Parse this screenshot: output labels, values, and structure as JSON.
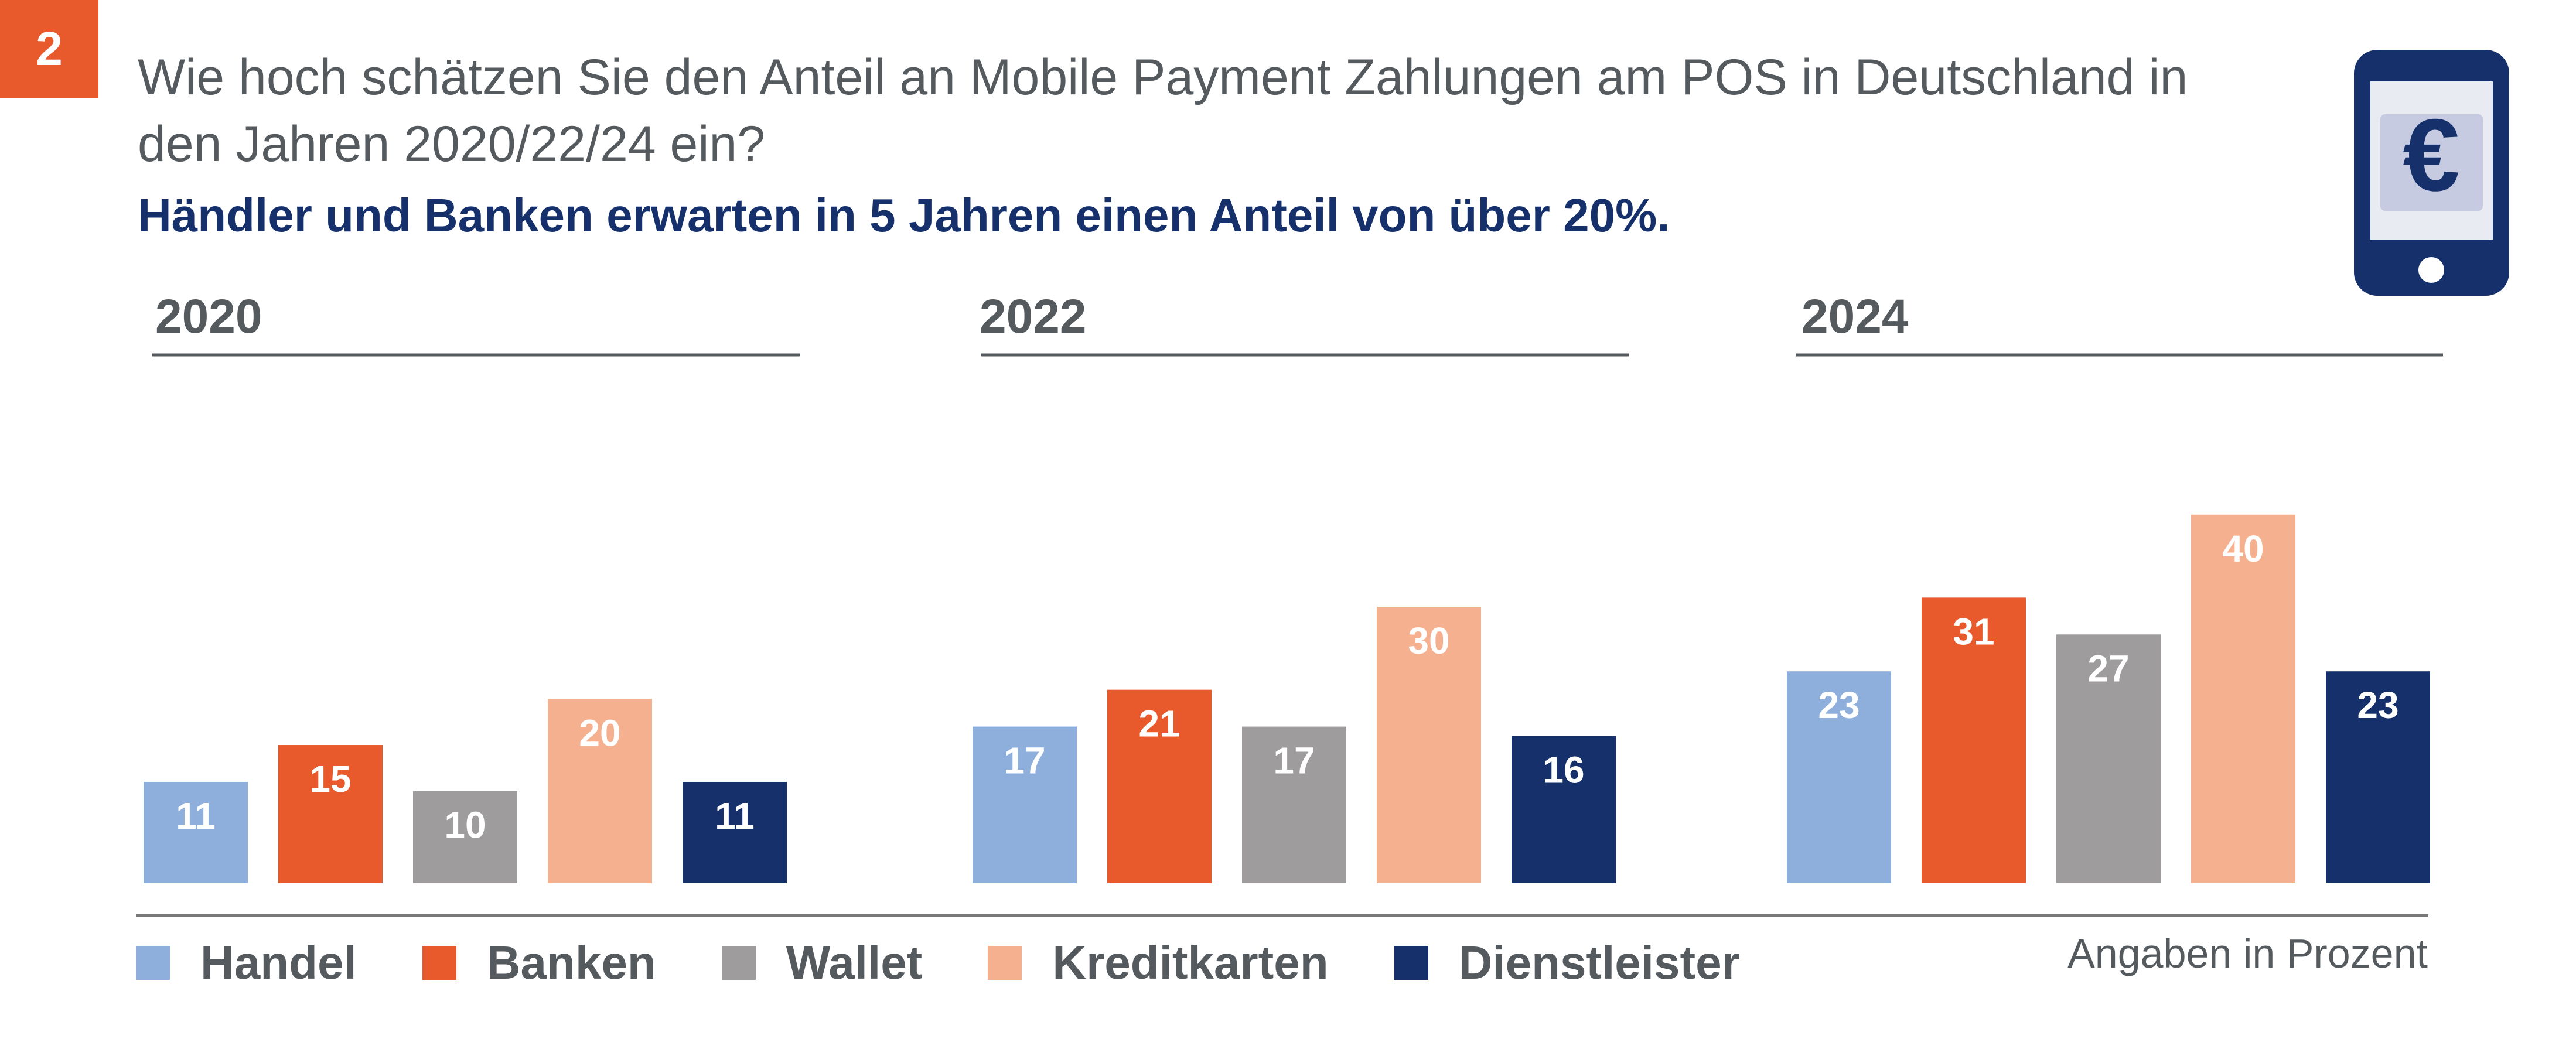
{
  "badge": "2",
  "question": "Wie hoch schätzen Sie den Anteil an Mobile Payment Zahlungen am POS in Deutschland in den Jahren 2020/22/24 ein?",
  "subtitle": "Händler und Banken erwarten in 5 Jahren einen Anteil von über 20%.",
  "icon": {
    "name": "mobile-phone-euro-icon",
    "symbol": "€",
    "colors": {
      "frame": "#15306a",
      "screen": "#e9ebf2",
      "panel": "#c7cbe2"
    }
  },
  "note": "Angaben in Prozent",
  "chart_data": {
    "type": "bar",
    "groups": [
      "2020",
      "2022",
      "2024"
    ],
    "series": [
      {
        "name": "Handel",
        "color": "#8eaedb",
        "values": [
          11,
          17,
          23
        ]
      },
      {
        "name": "Banken",
        "color": "#e85a2b",
        "values": [
          15,
          21,
          31
        ]
      },
      {
        "name": "Wallet",
        "color": "#9e9c9c",
        "values": [
          10,
          17,
          27
        ]
      },
      {
        "name": "Kreditkarten",
        "color": "#f5b08f",
        "values": [
          20,
          30,
          40
        ]
      },
      {
        "name": "Dienstleister",
        "color": "#15306a",
        "values": [
          11,
          16,
          23
        ]
      }
    ],
    "ylim": [
      0,
      40
    ],
    "grid": false,
    "legend": "bottom-left",
    "data_labels": true
  }
}
